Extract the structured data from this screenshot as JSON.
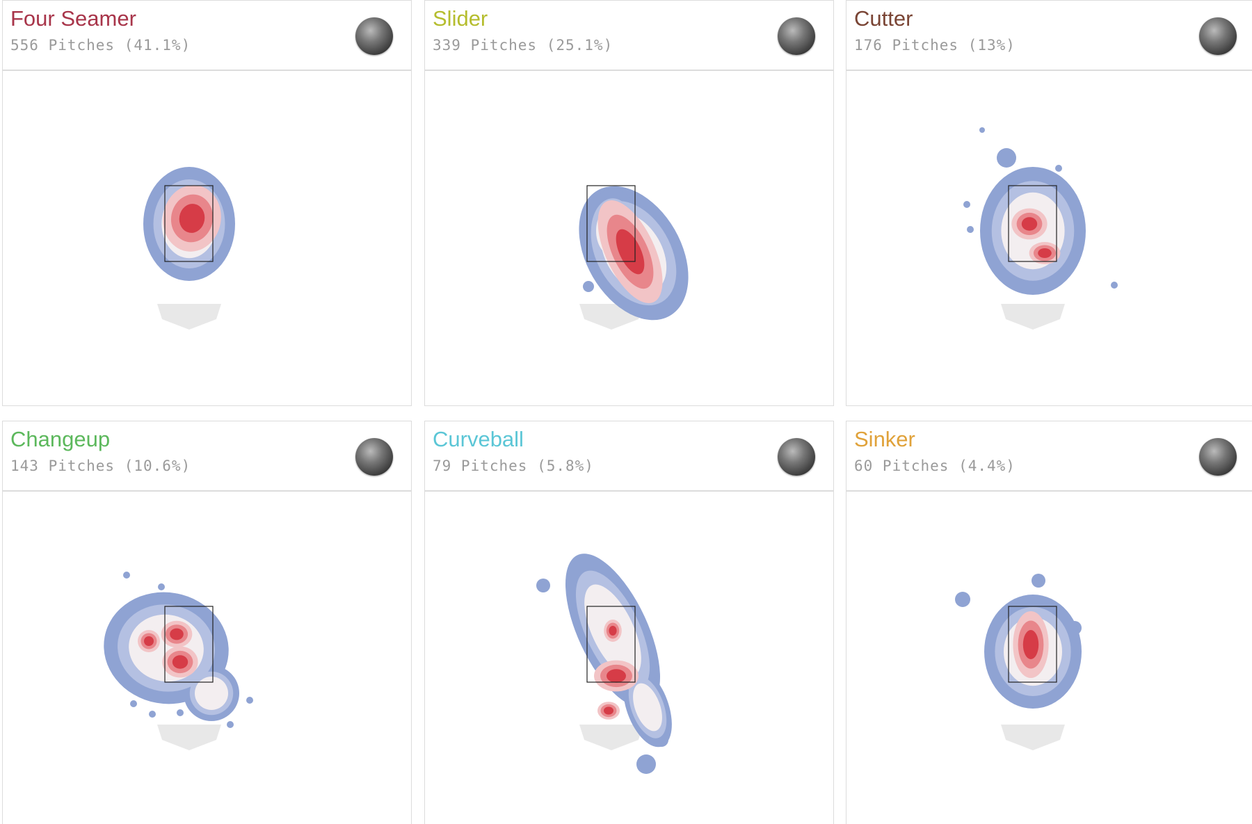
{
  "panels": [
    {
      "title": "Four Seamer",
      "subtitle": "556 Pitches (41.1%)",
      "color": "#a8354a"
    },
    {
      "title": "Slider",
      "subtitle": "339 Pitches (25.1%)",
      "color": "#b5bd2e"
    },
    {
      "title": "Cutter",
      "subtitle": "176 Pitches (13%)",
      "color": "#7a4535"
    },
    {
      "title": "Changeup",
      "subtitle": "143 Pitches (10.6%)",
      "color": "#5cb85c"
    },
    {
      "title": "Curveball",
      "subtitle": "79 Pitches (5.8%)",
      "color": "#5bc6d6"
    },
    {
      "title": "Sinker",
      "subtitle": "60 Pitches (4.4%)",
      "color": "#e0a23a"
    }
  ]
}
